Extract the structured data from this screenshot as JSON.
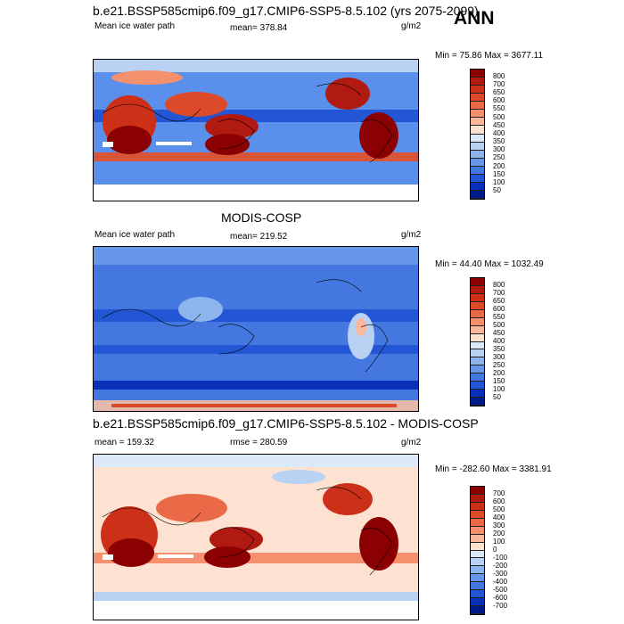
{
  "season": "ANN",
  "panels": [
    {
      "title": "b.e21.BSSP585cmip6.f09_g17.CMIP6-SSP5-8.5.102 (yrs 2075-2099)",
      "left_label": "Mean ice water path",
      "center_label": "mean= 378.84",
      "units": "g/m2",
      "minmax": "Min =  75.86 Max = 3677.11",
      "colorbar_levels": [
        "800",
        "700",
        "650",
        "600",
        "550",
        "500",
        "450",
        "400",
        "350",
        "300",
        "250",
        "200",
        "150",
        "100",
        "50"
      ],
      "colors": [
        "#8b0000",
        "#b01a10",
        "#cc3018",
        "#dd4a2a",
        "#ea6a48",
        "#f4906e",
        "#fab89a",
        "#fde2d2",
        "#dce9f8",
        "#b9d2f4",
        "#8eb4ee",
        "#6796e8",
        "#4478e0",
        "#2256d4",
        "#0a2fb8",
        "#001a8c"
      ]
    },
    {
      "title": "MODIS-COSP",
      "left_label": "Mean ice water path",
      "center_label": "mean= 219.52",
      "units": "g/m2",
      "minmax": "Min =  44.40 Max = 1032.49",
      "colorbar_levels": [
        "800",
        "700",
        "650",
        "600",
        "550",
        "500",
        "450",
        "400",
        "350",
        "300",
        "250",
        "200",
        "150",
        "100",
        "50"
      ],
      "colors": [
        "#8b0000",
        "#b01a10",
        "#cc3018",
        "#dd4a2a",
        "#ea6a48",
        "#f4906e",
        "#fab89a",
        "#fde2d2",
        "#dce9f8",
        "#b9d2f4",
        "#8eb4ee",
        "#6796e8",
        "#4478e0",
        "#2256d4",
        "#0a2fb8",
        "#001a8c"
      ]
    },
    {
      "title": "b.e21.BSSP585cmip6.f09_g17.CMIP6-SSP5-8.5.102 - MODIS-COSP",
      "left_label": "mean = 159.32",
      "center_label": "rmse = 280.59",
      "units": "g/m2",
      "minmax": "Min = -282.60 Max = 3381.91",
      "colorbar_levels": [
        "700",
        "600",
        "500",
        "400",
        "300",
        "200",
        "100",
        "0",
        "-100",
        "-200",
        "-300",
        "-400",
        "-500",
        "-600",
        "-700"
      ],
      "colors": [
        "#8b0000",
        "#b01a10",
        "#cc3018",
        "#dd4a2a",
        "#ea6a48",
        "#f4906e",
        "#fab89a",
        "#fde2d2",
        "#dce9f8",
        "#b9d2f4",
        "#8eb4ee",
        "#6796e8",
        "#4478e0",
        "#2256d4",
        "#0a2fb8",
        "#001a8c"
      ]
    }
  ]
}
